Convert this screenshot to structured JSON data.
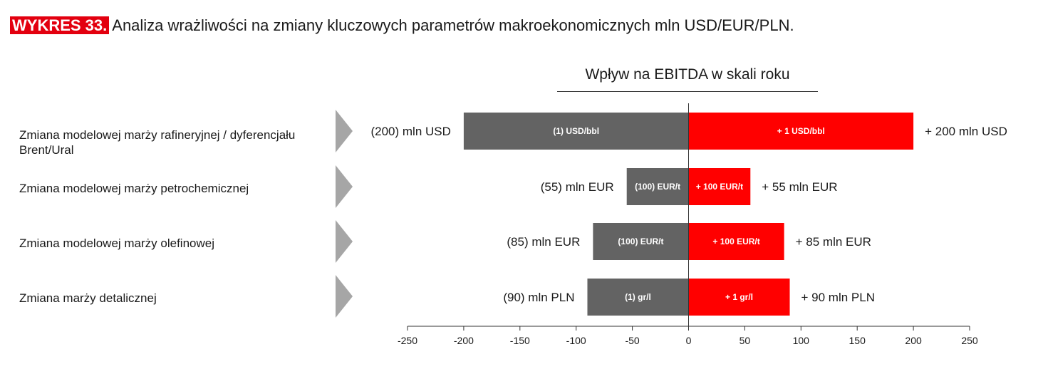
{
  "header": {
    "tag": "WYKRES 33.",
    "title": "Analiza wrażliwości na zmiany kluczowych parametrów makroekonomicznych mln USD/EUR/PLN."
  },
  "colors": {
    "negative": "#636363",
    "positive": "#ff0000",
    "tag_bg": "#e3000f",
    "chevron": "#a6a6a6"
  },
  "chart_data": {
    "type": "bar",
    "orientation": "horizontal",
    "title": "Wpływ na EBITDA w skali roku",
    "xlim": [
      -250,
      250
    ],
    "xticks": [
      "-250",
      "-200",
      "-150",
      "-100",
      "-50",
      "0",
      "50",
      "100",
      "150",
      "200",
      "250"
    ],
    "categories": [
      "Zmiana modelowej marży rafineryjnej / dyferencjału Brent/Ural",
      "Zmiana modelowej marży petrochemicznej",
      "Zmiana modelowej marży olefinowej",
      "Zmiana marży detalicznej"
    ],
    "series": [
      {
        "values": [
          -200,
          -55,
          -85,
          -90
        ],
        "bar_labels": [
          "(1) USD/bbl",
          "(100) EUR/t",
          "(100) EUR/t",
          "(1) gr/l"
        ],
        "end_labels": [
          "(200) mln USD",
          "(55) mln EUR",
          "(85) mln EUR",
          "(90) mln PLN"
        ]
      },
      {
        "values": [
          200,
          55,
          85,
          90
        ],
        "bar_labels": [
          "+ 1 USD/bbl",
          "+ 100 EUR/t",
          "+ 100 EUR/t",
          "+ 1 gr/l"
        ],
        "end_labels": [
          "+ 200 mln USD",
          "+ 55 mln EUR",
          "+ 85 mln EUR",
          "+ 90 mln PLN"
        ]
      }
    ],
    "grid": false
  }
}
